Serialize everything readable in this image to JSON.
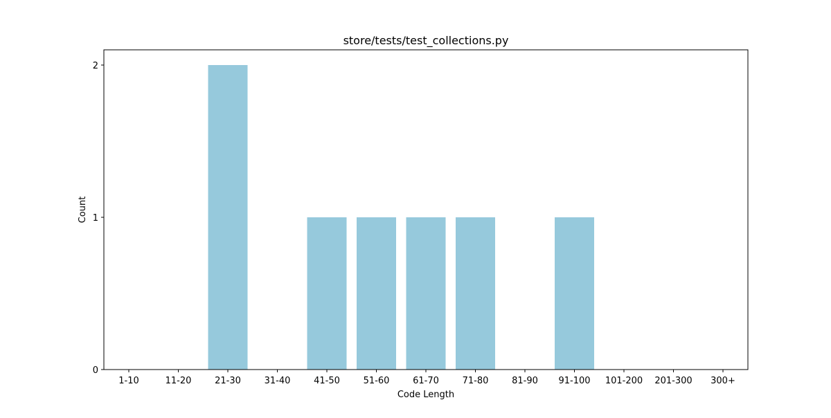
{
  "chart_data": {
    "type": "bar",
    "title": "store/tests/test_collections.py",
    "xlabel": "Code Length",
    "ylabel": "Count",
    "categories": [
      "1-10",
      "11-20",
      "21-30",
      "31-40",
      "41-50",
      "51-60",
      "61-70",
      "71-80",
      "81-90",
      "91-100",
      "101-200",
      "201-300",
      "300+"
    ],
    "values": [
      0,
      0,
      2,
      0,
      1,
      1,
      1,
      1,
      0,
      1,
      0,
      0,
      0
    ],
    "ylim": [
      0,
      2.1
    ],
    "yticks": [
      0,
      1,
      2
    ],
    "grid": false,
    "bar_color": "#96c9dc"
  }
}
